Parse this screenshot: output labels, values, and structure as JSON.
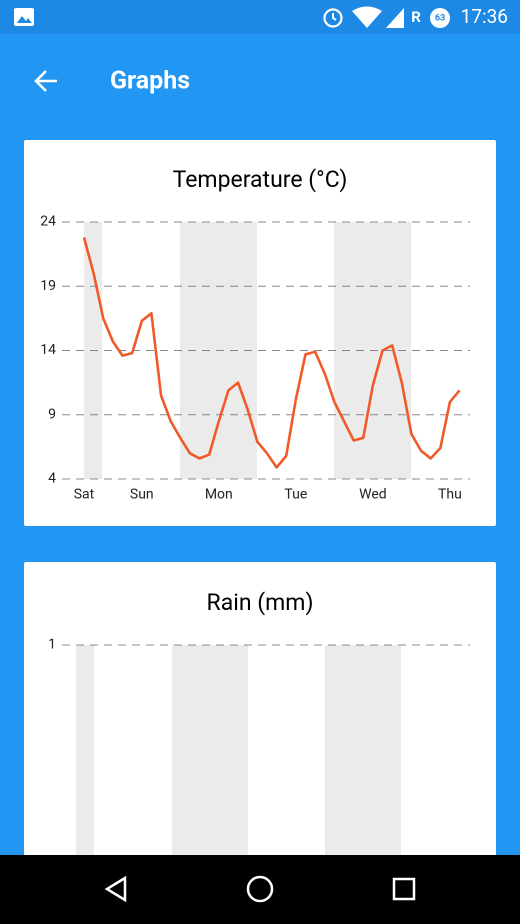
{
  "status_bar": {
    "time": "17:36",
    "network": "R",
    "battery": "63"
  },
  "app_bar": {
    "title": "Graphs"
  },
  "chart_data": [
    {
      "type": "line",
      "title": "Temperature (°C)",
      "color": "#f05a28",
      "grid": true,
      "categories": [
        "Sat",
        null,
        null,
        null,
        null,
        null,
        "Sun",
        null,
        null,
        null,
        null,
        null,
        null,
        null,
        "Mon",
        null,
        null,
        null,
        null,
        null,
        null,
        null,
        "Tue",
        null,
        null,
        null,
        null,
        null,
        null,
        null,
        "Wed",
        null,
        null,
        null,
        null,
        null,
        null,
        null,
        "Thu",
        null
      ],
      "values": [
        22.8,
        20,
        16.5,
        14.7,
        13.6,
        13.8,
        16.3,
        16.9,
        10.5,
        8.5,
        7.2,
        6,
        5.6,
        5.9,
        8.5,
        10.9,
        11.5,
        9.4,
        6.9,
        6,
        4.9,
        5.8,
        10.2,
        13.7,
        13.9,
        12.2,
        10,
        8.5,
        7,
        7.2,
        11.3,
        14,
        14.4,
        11.5,
        7.5,
        6.2,
        5.6,
        6.4,
        10,
        10.9
      ],
      "ylim": [
        4,
        24
      ],
      "yticks": [
        4,
        9,
        14,
        19,
        24
      ]
    },
    {
      "type": "line",
      "title": "Rain (mm)",
      "grid": true,
      "ylim": [
        0,
        1
      ],
      "yticks": [
        1
      ]
    }
  ]
}
